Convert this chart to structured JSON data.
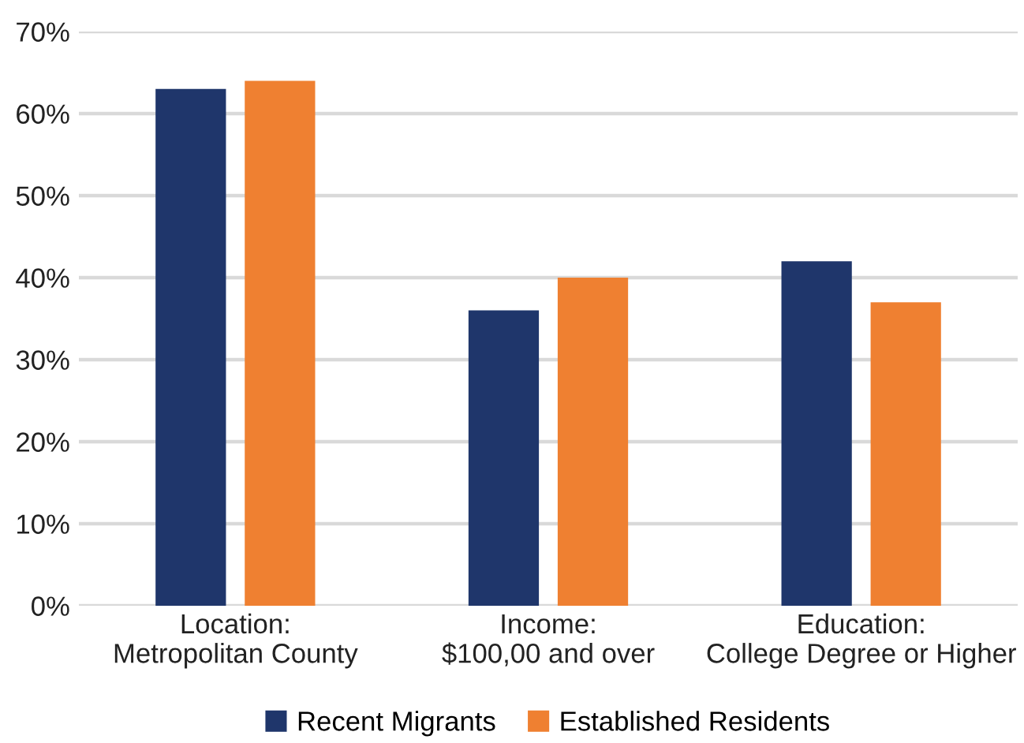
{
  "chart_data": {
    "type": "bar",
    "categories": [
      "Location:\nMetropolitan County",
      "Income:\n$100,00 and over",
      "Education:\nCollege Degree or Higher"
    ],
    "series": [
      {
        "name": "Recent Migrants",
        "color": "#1f366b",
        "values": [
          63,
          36,
          42
        ]
      },
      {
        "name": "Established Residents",
        "color": "#ef8031",
        "values": [
          64,
          40,
          37
        ]
      }
    ],
    "ylim": [
      0,
      70
    ],
    "yticks": [
      {
        "value": 0,
        "label": "0%"
      },
      {
        "value": 10,
        "label": "10%"
      },
      {
        "value": 20,
        "label": "20%"
      },
      {
        "value": 30,
        "label": "30%"
      },
      {
        "value": 40,
        "label": "40%"
      },
      {
        "value": 50,
        "label": "50%"
      },
      {
        "value": 60,
        "label": "60%"
      },
      {
        "value": 70,
        "label": "70%"
      }
    ],
    "grid": "y",
    "legend": "bottom"
  }
}
